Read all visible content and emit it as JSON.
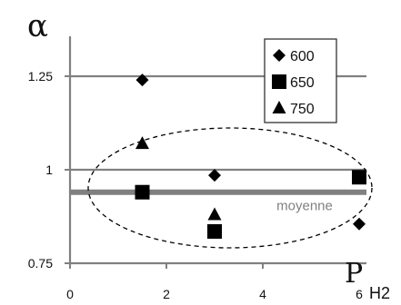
{
  "chart_data": {
    "type": "scatter",
    "ylabel": "α",
    "xlabel": {
      "main": "P",
      "sub": "H2"
    },
    "xlim": [
      0,
      7.2
    ],
    "ylim": [
      0.75,
      1.4
    ],
    "x_ticks": [
      "0",
      "2",
      "4",
      "6"
    ],
    "x_tick_values": [
      0,
      2,
      4,
      6
    ],
    "y_ticks": [
      "0.75",
      "1",
      "1.25"
    ],
    "y_tick_values": [
      0.75,
      1,
      1.25
    ],
    "grid_lines_y": [
      1.0,
      1.25
    ],
    "legend_placement": "top-right",
    "series": [
      {
        "name": "600",
        "marker": "diamond",
        "points": [
          {
            "x": 1.5,
            "y": 1.24
          },
          {
            "x": 3.0,
            "y": 0.985
          },
          {
            "x": 6.0,
            "y": 0.855
          }
        ]
      },
      {
        "name": "650",
        "marker": "square",
        "points": [
          {
            "x": 1.5,
            "y": 0.94
          },
          {
            "x": 3.0,
            "y": 0.835
          },
          {
            "x": 6.0,
            "y": 0.98
          }
        ]
      },
      {
        "name": "750",
        "marker": "triangle",
        "points": [
          {
            "x": 1.5,
            "y": 1.07
          },
          {
            "x": 3.0,
            "y": 0.88
          }
        ]
      }
    ],
    "reference_line": {
      "label": "moyenne",
      "y": 0.94,
      "color": "#808080"
    },
    "colors": {
      "grid": "#808080",
      "markers": "#000000",
      "axis": "#808080"
    }
  }
}
